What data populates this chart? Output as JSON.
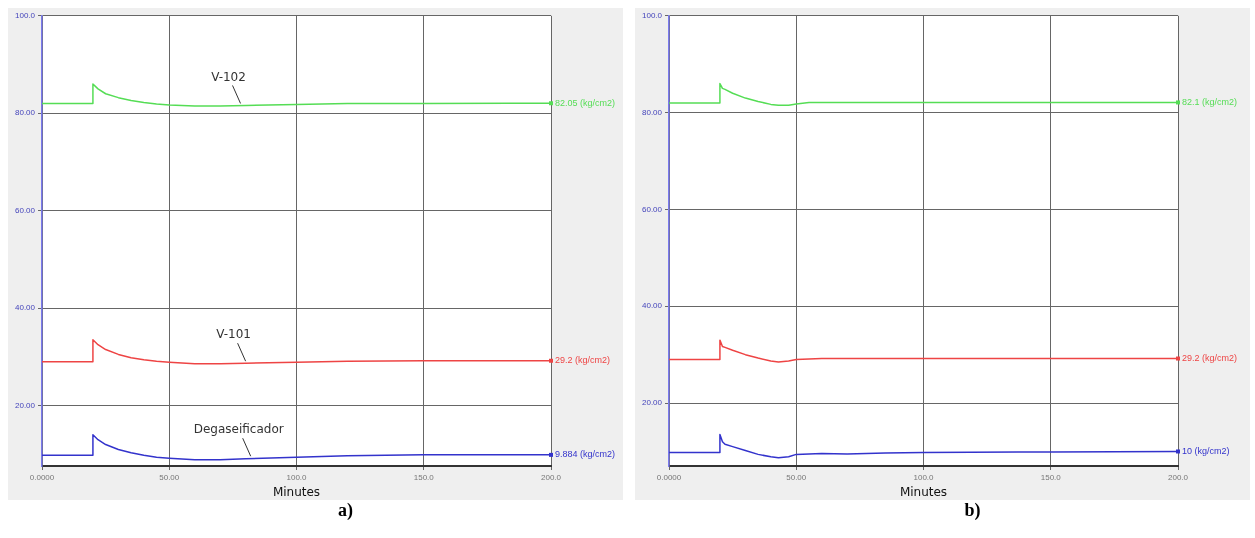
{
  "chart_data": [
    {
      "type": "line",
      "title": "a)",
      "xlabel": "Minutes",
      "series": [
        {
          "color": "#55dd55",
          "x": [
            0,
            20,
            20,
            22,
            25,
            30,
            35,
            40,
            45,
            50,
            60,
            70,
            80,
            100,
            120,
            150,
            200
          ],
          "values": [
            82,
            82,
            86,
            85,
            84,
            83.2,
            82.6,
            82.2,
            81.9,
            81.7,
            81.5,
            81.5,
            81.6,
            81.8,
            82,
            82,
            82.05
          ]
        },
        {
          "color": "#ee4444",
          "x": [
            0,
            20,
            20,
            22,
            25,
            30,
            35,
            40,
            45,
            50,
            60,
            70,
            80,
            100,
            120,
            150,
            200
          ],
          "values": [
            29,
            29,
            33.5,
            32.5,
            31.5,
            30.5,
            29.8,
            29.4,
            29.1,
            28.9,
            28.6,
            28.6,
            28.7,
            28.9,
            29.1,
            29.2,
            29.2
          ]
        },
        {
          "color": "#3333cc",
          "x": [
            0,
            20,
            20,
            22,
            25,
            30,
            35,
            40,
            45,
            50,
            60,
            70,
            80,
            100,
            120,
            150,
            200
          ],
          "values": [
            9.8,
            9.8,
            14,
            13,
            12,
            11,
            10.3,
            9.8,
            9.4,
            9.2,
            8.9,
            8.9,
            9.1,
            9.4,
            9.7,
            9.9,
            9.884
          ]
        }
      ],
      "xlim": [
        0,
        200
      ],
      "xticks": [
        {
          "value": 0,
          "label": "0.0000"
        },
        {
          "value": 50,
          "label": "50.00"
        },
        {
          "value": 100,
          "label": "100.0"
        },
        {
          "value": 150,
          "label": "150.0"
        },
        {
          "value": 200,
          "label": "200.0"
        }
      ],
      "ylim": [
        7.6,
        100
      ],
      "yticks": [
        {
          "value": 20,
          "label": "20.00"
        },
        {
          "value": 40,
          "label": "40.00"
        },
        {
          "value": 60,
          "label": "60.00"
        },
        {
          "value": 80,
          "label": "80.00"
        },
        {
          "value": 100,
          "label": "100.0"
        }
      ],
      "grid": true,
      "marker": "none",
      "line_style": "solid",
      "annotations": [
        {
          "text": "V-102",
          "x": 78,
          "y": 81.6
        },
        {
          "text": "V-101",
          "x": 80,
          "y": 28.7
        },
        {
          "text": "Degaseificador",
          "x": 82,
          "y": 9.2
        },
        {
          "text": "82.05 (kg/cm2)",
          "x": 200,
          "y": 82.05
        },
        {
          "text": "29.2 (kg/cm2)",
          "x": 200,
          "y": 29.2
        },
        {
          "text": "9.884 (kg/cm2)",
          "x": 200,
          "y": 9.884
        }
      ]
    },
    {
      "type": "line",
      "title": "b)",
      "xlabel": "Minutes",
      "series": [
        {
          "color": "#55dd55",
          "x": [
            0,
            20,
            20,
            21,
            22,
            25,
            30,
            35,
            40,
            43,
            47,
            50,
            55,
            60,
            70,
            85,
            100,
            150,
            200
          ],
          "values": [
            82,
            82,
            86,
            85,
            84.8,
            84,
            83,
            82.3,
            81.7,
            81.5,
            81.5,
            81.8,
            82.1,
            82.1,
            82.1,
            82.1,
            82.1,
            82.1,
            82.1
          ]
        },
        {
          "color": "#ee4444",
          "x": [
            0,
            20,
            20,
            21,
            22,
            25,
            30,
            35,
            40,
            43,
            47,
            50,
            55,
            60,
            70,
            85,
            100,
            150,
            200
          ],
          "values": [
            29,
            29,
            33,
            31.7,
            31.5,
            30.9,
            30,
            29.3,
            28.7,
            28.5,
            28.7,
            29,
            29.1,
            29.2,
            29.2,
            29.2,
            29.2,
            29.2,
            29.2
          ]
        },
        {
          "color": "#3333cc",
          "x": [
            0,
            20,
            20,
            21,
            22,
            25,
            30,
            35,
            40,
            43,
            47,
            50,
            55,
            60,
            70,
            85,
            100,
            150,
            200
          ],
          "values": [
            9.8,
            9.8,
            13.5,
            12,
            11.5,
            11,
            10.2,
            9.4,
            8.9,
            8.7,
            8.9,
            9.4,
            9.5,
            9.6,
            9.5,
            9.7,
            9.8,
            9.9,
            10
          ]
        }
      ],
      "xlim": [
        0,
        200
      ],
      "xticks": [
        {
          "value": 0,
          "label": "0.0000"
        },
        {
          "value": 50,
          "label": "50.00"
        },
        {
          "value": 100,
          "label": "100.0"
        },
        {
          "value": 150,
          "label": "150.0"
        },
        {
          "value": 200,
          "label": "200.0"
        }
      ],
      "ylim": [
        7,
        100
      ],
      "yticks": [
        {
          "value": 20,
          "label": "20.00"
        },
        {
          "value": 40,
          "label": "40.00"
        },
        {
          "value": 60,
          "label": "60.00"
        },
        {
          "value": 80,
          "label": "80.00"
        },
        {
          "value": 100,
          "label": "100.0"
        }
      ],
      "grid": true,
      "marker": "none",
      "line_style": "solid",
      "annotations": [
        {
          "text": "82.1 (kg/cm2)",
          "x": 200,
          "y": 82.1
        },
        {
          "text": "29.2 (kg/cm2)",
          "x": 200,
          "y": 29.2
        },
        {
          "text": "10 (kg/cm2)",
          "x": 200,
          "y": 10
        }
      ]
    }
  ]
}
